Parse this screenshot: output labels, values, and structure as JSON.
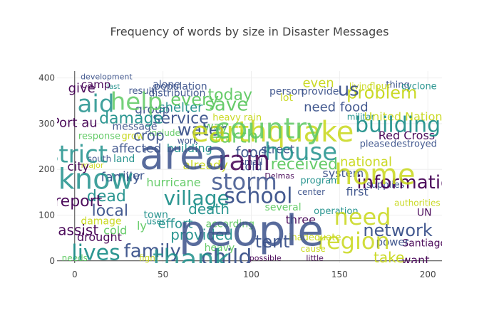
{
  "chart_data": {
    "type": "scatter",
    "mode": "text",
    "title": "Frequency of words by size in Disaster Messages",
    "xlabel": "",
    "ylabel": "",
    "xlim": [
      -10,
      208
    ],
    "ylim": [
      -5,
      415
    ],
    "xticks": [
      0,
      50,
      100,
      150,
      200
    ],
    "yticks": [
      0,
      100,
      200,
      300,
      400
    ],
    "grid": true,
    "colorscale": [
      "#440154",
      "#3b528b",
      "#21918c",
      "#5ec962",
      "#c8d81a",
      "#fde725"
    ],
    "points": [
      {
        "word": "development",
        "x": 18,
        "y": 402,
        "size": 11,
        "c": 0.15
      },
      {
        "word": "camp",
        "x": 12,
        "y": 385,
        "size": 15,
        "c": 0.05
      },
      {
        "word": "last",
        "x": 22,
        "y": 381,
        "size": 10,
        "c": 0.35
      },
      {
        "word": "give",
        "x": 4,
        "y": 376,
        "size": 18,
        "c": 0.05
      },
      {
        "word": "alone",
        "x": 52,
        "y": 385,
        "size": 14,
        "c": 0.1
      },
      {
        "word": "population",
        "x": 60,
        "y": 381,
        "size": 14,
        "c": 0.1
      },
      {
        "word": "result",
        "x": 38,
        "y": 371,
        "size": 13,
        "c": 0.2
      },
      {
        "word": "distribution",
        "x": 58,
        "y": 366,
        "size": 14,
        "c": 0.15
      },
      {
        "word": "aid",
        "x": 12,
        "y": 340,
        "size": 34,
        "c": 0.45
      },
      {
        "word": "help",
        "x": 35,
        "y": 345,
        "size": 34,
        "c": 0.5
      },
      {
        "word": "every",
        "x": 68,
        "y": 351,
        "size": 24,
        "c": 0.55
      },
      {
        "word": "today",
        "x": 88,
        "y": 361,
        "size": 22,
        "c": 0.5
      },
      {
        "word": "group",
        "x": 44,
        "y": 330,
        "size": 17,
        "c": 0.25
      },
      {
        "word": "shelter",
        "x": 60,
        "y": 334,
        "size": 18,
        "c": 0.4
      },
      {
        "word": "save",
        "x": 86,
        "y": 340,
        "size": 26,
        "c": 0.6
      },
      {
        "word": "service",
        "x": 60,
        "y": 310,
        "size": 22,
        "c": 0.2
      },
      {
        "word": "damage",
        "x": 32,
        "y": 310,
        "size": 22,
        "c": 0.3
      },
      {
        "word": "Port au",
        "x": 0,
        "y": 301,
        "size": 18,
        "c": 0.05
      },
      {
        "word": "message",
        "x": 34,
        "y": 293,
        "size": 14,
        "c": 0.1
      },
      {
        "word": "include",
        "x": 51,
        "y": 279,
        "size": 12,
        "c": 0.55
      },
      {
        "word": "crop",
        "x": 42,
        "y": 272,
        "size": 20,
        "c": 0.2
      },
      {
        "word": "response",
        "x": 14,
        "y": 272,
        "size": 13,
        "c": 0.6
      },
      {
        "word": "grow",
        "x": 33,
        "y": 272,
        "size": 13,
        "c": 0.7
      },
      {
        "word": "even",
        "x": 138,
        "y": 388,
        "size": 18,
        "c": 0.8
      },
      {
        "word": "living",
        "x": 162,
        "y": 381,
        "size": 12,
        "c": 0.75
      },
      {
        "word": "flour",
        "x": 173,
        "y": 381,
        "size": 13,
        "c": 0.85
      },
      {
        "word": "thing",
        "x": 183,
        "y": 384,
        "size": 13,
        "c": 0.1
      },
      {
        "word": "cyclone",
        "x": 195,
        "y": 381,
        "size": 13,
        "c": 0.4
      },
      {
        "word": "person",
        "x": 120,
        "y": 370,
        "size": 14,
        "c": 0.1
      },
      {
        "word": "provide",
        "x": 139,
        "y": 370,
        "size": 14,
        "c": 0.1
      },
      {
        "word": "lot",
        "x": 120,
        "y": 356,
        "size": 14,
        "c": 0.8
      },
      {
        "word": "us",
        "x": 155,
        "y": 373,
        "size": 26,
        "c": 0.1
      },
      {
        "word": "problem",
        "x": 174,
        "y": 366,
        "size": 24,
        "c": 0.8
      },
      {
        "word": "need food",
        "x": 148,
        "y": 335,
        "size": 18,
        "c": 0.15
      },
      {
        "word": "earthquake",
        "x": 112,
        "y": 278,
        "size": 40,
        "c": 0.8
      },
      {
        "word": "country",
        "x": 110,
        "y": 285,
        "size": 40,
        "c": 0.5
      },
      {
        "word": "heavy rain",
        "x": 92,
        "y": 312,
        "size": 13,
        "c": 0.85
      },
      {
        "word": "militar",
        "x": 162,
        "y": 314,
        "size": 12,
        "c": 0.45
      },
      {
        "word": "United Nation",
        "x": 186,
        "y": 314,
        "size": 16,
        "c": 0.7
      },
      {
        "word": "building",
        "x": 183,
        "y": 295,
        "size": 30,
        "c": 0.3
      },
      {
        "word": "Red Cross",
        "x": 188,
        "y": 273,
        "size": 16,
        "c": 0.05
      },
      {
        "word": "please",
        "x": 170,
        "y": 255,
        "size": 13,
        "c": 0.2
      },
      {
        "word": "destroyed",
        "x": 192,
        "y": 255,
        "size": 13,
        "c": 0.2
      },
      {
        "word": "way",
        "x": 80,
        "y": 293,
        "size": 17,
        "c": 0.55
      },
      {
        "word": "water",
        "x": 72,
        "y": 285,
        "size": 24,
        "c": 0.2
      },
      {
        "word": "earth",
        "x": 90,
        "y": 270,
        "size": 26,
        "c": 0.6
      },
      {
        "word": "work",
        "x": 64,
        "y": 262,
        "size": 12,
        "c": 0.2
      },
      {
        "word": "rice",
        "x": 84,
        "y": 265,
        "size": 12,
        "c": 0.7
      },
      {
        "word": "area",
        "x": 62,
        "y": 225,
        "size": 56,
        "c": 0.25
      },
      {
        "word": "district",
        "x": -5,
        "y": 230,
        "size": 34,
        "c": 0.3
      },
      {
        "word": "rain",
        "x": 96,
        "y": 215,
        "size": 38,
        "c": 0.05
      },
      {
        "word": "affected",
        "x": 35,
        "y": 245,
        "size": 17,
        "c": 0.15
      },
      {
        "word": "building",
        "x": 65,
        "y": 245,
        "size": 16,
        "c": 0.3
      },
      {
        "word": "city",
        "x": 2,
        "y": 205,
        "size": 17,
        "c": 0.05
      },
      {
        "word": "south",
        "x": 14,
        "y": 222,
        "size": 12,
        "c": 0.1
      },
      {
        "word": "land",
        "x": 28,
        "y": 222,
        "size": 14,
        "c": 0.35
      },
      {
        "word": "major",
        "x": 10,
        "y": 208,
        "size": 11,
        "c": 0.75
      },
      {
        "word": "food",
        "x": 100,
        "y": 235,
        "size": 20,
        "c": 0.1
      },
      {
        "word": "street",
        "x": 115,
        "y": 242,
        "size": 16,
        "c": 0.2
      },
      {
        "word": "small",
        "x": 100,
        "y": 215,
        "size": 12,
        "c": 0.1
      },
      {
        "word": "already",
        "x": 74,
        "y": 208,
        "size": 17,
        "c": 0.75
      },
      {
        "word": "told",
        "x": 100,
        "y": 205,
        "size": 16,
        "c": 0.1
      },
      {
        "word": "house",
        "x": 128,
        "y": 235,
        "size": 34,
        "c": 0.3
      },
      {
        "word": "received",
        "x": 130,
        "y": 210,
        "size": 22,
        "c": 0.55
      },
      {
        "word": "national",
        "x": 165,
        "y": 215,
        "size": 18,
        "c": 0.8
      },
      {
        "word": "system",
        "x": 152,
        "y": 190,
        "size": 16,
        "c": 0.1
      },
      {
        "word": "home",
        "x": 170,
        "y": 185,
        "size": 40,
        "c": 0.7
      },
      {
        "word": "information",
        "x": 190,
        "y": 170,
        "size": 26,
        "c": 0.05
      },
      {
        "word": "supplies",
        "x": 176,
        "y": 165,
        "size": 13,
        "c": 0.2
      },
      {
        "word": "first",
        "x": 160,
        "y": 150,
        "size": 16,
        "c": 0.25
      },
      {
        "word": "program",
        "x": 139,
        "y": 175,
        "size": 13,
        "c": 0.45
      },
      {
        "word": "center",
        "x": 134,
        "y": 150,
        "size": 12,
        "c": 0.2
      },
      {
        "word": "Delmas",
        "x": 116,
        "y": 185,
        "size": 11,
        "c": 0.05
      },
      {
        "word": "know",
        "x": 12,
        "y": 175,
        "size": 40,
        "c": 0.3
      },
      {
        "word": "river",
        "x": 32,
        "y": 185,
        "size": 16,
        "c": 0.2
      },
      {
        "word": "family",
        "x": 26,
        "y": 182,
        "size": 18,
        "c": 0.15
      },
      {
        "word": "hurricane",
        "x": 56,
        "y": 170,
        "size": 16,
        "c": 0.5
      },
      {
        "word": "storm",
        "x": 96,
        "y": 170,
        "size": 32,
        "c": 0.1
      },
      {
        "word": "village",
        "x": 69,
        "y": 135,
        "size": 28,
        "c": 0.3
      },
      {
        "word": "school",
        "x": 104,
        "y": 140,
        "size": 30,
        "c": 0.2
      },
      {
        "word": "dead",
        "x": 18,
        "y": 140,
        "size": 22,
        "c": 0.45
      },
      {
        "word": "report",
        "x": 2,
        "y": 129,
        "size": 22,
        "c": 0.05
      },
      {
        "word": "local",
        "x": 20,
        "y": 108,
        "size": 22,
        "c": 0.1
      },
      {
        "word": "need",
        "x": 163,
        "y": 93,
        "size": 32,
        "c": 0.8
      },
      {
        "word": "death",
        "x": 76,
        "y": 111,
        "size": 20,
        "c": 0.3
      },
      {
        "word": "several",
        "x": 118,
        "y": 116,
        "size": 14,
        "c": 0.6
      },
      {
        "word": "operation",
        "x": 148,
        "y": 108,
        "size": 13,
        "c": 0.3
      },
      {
        "word": "authorities",
        "x": 194,
        "y": 126,
        "size": 12,
        "c": 0.7
      },
      {
        "word": "UN",
        "x": 198,
        "y": 105,
        "size": 14,
        "c": 0.05
      },
      {
        "word": "three",
        "x": 128,
        "y": 88,
        "size": 16,
        "c": 0.05
      },
      {
        "word": "damage",
        "x": 15,
        "y": 86,
        "size": 14,
        "c": 0.7
      },
      {
        "word": "effort",
        "x": 57,
        "y": 80,
        "size": 18,
        "c": 0.3
      },
      {
        "word": "according",
        "x": 88,
        "y": 80,
        "size": 14,
        "c": 0.6
      },
      {
        "word": "people",
        "x": 100,
        "y": 60,
        "size": 60,
        "c": 0.1
      },
      {
        "word": "assist",
        "x": 2,
        "y": 65,
        "size": 20,
        "c": 0.05
      },
      {
        "word": "drought",
        "x": 14,
        "y": 50,
        "size": 16,
        "c": 0.05
      },
      {
        "word": "provided",
        "x": 72,
        "y": 55,
        "size": 20,
        "c": 0.3
      },
      {
        "word": "tent",
        "x": 112,
        "y": 40,
        "size": 24,
        "c": 0.2
      },
      {
        "word": "inadequate",
        "x": 136,
        "y": 50,
        "size": 13,
        "c": 0.7
      },
      {
        "word": "region",
        "x": 158,
        "y": 40,
        "size": 32,
        "c": 0.7
      },
      {
        "word": "network",
        "x": 183,
        "y": 65,
        "size": 24,
        "c": 0.1
      },
      {
        "word": "Santiago",
        "x": 198,
        "y": 38,
        "size": 14,
        "c": 0.05
      },
      {
        "word": "power",
        "x": 180,
        "y": 40,
        "size": 15,
        "c": 0.1
      },
      {
        "word": "lives",
        "x": 12,
        "y": 15,
        "size": 30,
        "c": 0.3
      },
      {
        "word": "family",
        "x": 44,
        "y": 20,
        "size": 26,
        "c": 0.1
      },
      {
        "word": "thank",
        "x": 66,
        "y": 0,
        "size": 38,
        "c": 0.4
      },
      {
        "word": "child",
        "x": 86,
        "y": 5,
        "size": 30,
        "c": 0.1
      },
      {
        "word": "heavy",
        "x": 82,
        "y": 28,
        "size": 14,
        "c": 0.55
      },
      {
        "word": "possible",
        "x": 108,
        "y": 5,
        "size": 11,
        "c": 0.05
      },
      {
        "word": "cause",
        "x": 135,
        "y": 25,
        "size": 12,
        "c": 0.85
      },
      {
        "word": "little",
        "x": 136,
        "y": 5,
        "size": 11,
        "c": 0.05
      },
      {
        "word": "take",
        "x": 178,
        "y": 5,
        "size": 20,
        "c": 0.7
      },
      {
        "word": "want",
        "x": 193,
        "y": 0,
        "size": 16,
        "c": 0.05
      },
      {
        "word": "needs",
        "x": 0,
        "y": 5,
        "size": 12,
        "c": 0.6
      },
      {
        "word": "fight",
        "x": 42,
        "y": 5,
        "size": 12,
        "c": 0.75
      },
      {
        "word": "cold",
        "x": 23,
        "y": 65,
        "size": 16,
        "c": 0.5
      },
      {
        "word": "ly",
        "x": 38,
        "y": 75,
        "size": 16,
        "c": 0.5
      },
      {
        "word": "town",
        "x": 46,
        "y": 100,
        "size": 14,
        "c": 0.3
      },
      {
        "word": "user",
        "x": 46,
        "y": 85,
        "size": 12,
        "c": 0.3
      }
    ]
  }
}
